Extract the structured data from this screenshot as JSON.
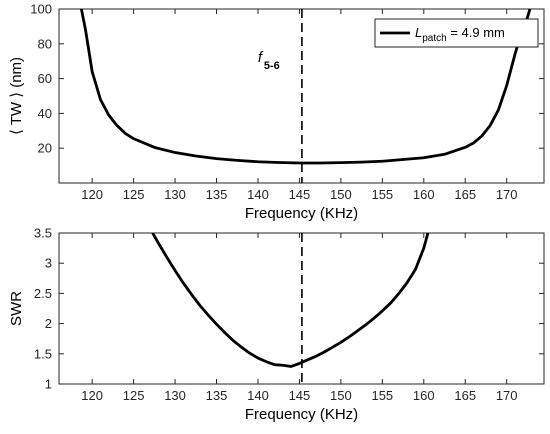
{
  "chart_data": [
    {
      "type": "line",
      "xlabel": "Frequency (KHz)",
      "ylabel": "⟨ TW ⟩ (nm)",
      "xlim": [
        116,
        174.5
      ],
      "ylim": [
        0,
        100
      ],
      "xticks": [
        120,
        125,
        130,
        135,
        140,
        145,
        150,
        155,
        160,
        165,
        170
      ],
      "yticks": [
        20,
        40,
        60,
        80,
        100
      ],
      "grid": false,
      "legend_position": "top-right",
      "legend": {
        "prefix": "L",
        "subscript": "patch",
        "suffix": " = 4.9 mm"
      },
      "vline": {
        "x": 145.3,
        "label_main": "f",
        "label_sub": "5-6"
      },
      "series": [
        {
          "name": "L patch = 4.9 mm",
          "x": [
            118.7,
            119.2,
            120,
            121,
            122,
            123,
            124,
            125,
            127.5,
            130,
            132.5,
            135,
            137.5,
            140,
            142.5,
            145,
            147.5,
            150,
            152.5,
            155,
            157.5,
            160,
            162.5,
            165,
            166,
            167,
            168,
            169,
            170,
            170.5,
            171,
            171.5,
            172,
            172.5,
            172.8
          ],
          "y": [
            100,
            88,
            64,
            48,
            39,
            33,
            28.5,
            25.5,
            20.5,
            17.5,
            15.5,
            14,
            13,
            12.2,
            11.8,
            11.5,
            11.5,
            11.7,
            12,
            12.5,
            13.5,
            14.5,
            16.5,
            20.5,
            23,
            27,
            33,
            42,
            56,
            65,
            74,
            82,
            89,
            95,
            100
          ]
        }
      ]
    },
    {
      "type": "line",
      "xlabel": "Frequency (KHz)",
      "ylabel": "SWR",
      "xlim": [
        116,
        174.5
      ],
      "ylim": [
        1,
        3.5
      ],
      "xticks": [
        120,
        125,
        130,
        135,
        140,
        145,
        150,
        155,
        160,
        165,
        170
      ],
      "yticks": [
        1,
        1.5,
        2,
        2.5,
        3,
        3.5
      ],
      "yticklabels": [
        "1",
        "1.5",
        "2",
        "2.5",
        "3",
        "3.5"
      ],
      "grid": false,
      "vline": {
        "x": 145.3
      },
      "series": [
        {
          "x": [
            127.3,
            128,
            129,
            130,
            131,
            132,
            133,
            134,
            135,
            136,
            137,
            138,
            139,
            140,
            141,
            142,
            143,
            144,
            145,
            146,
            147,
            148,
            149,
            150,
            151,
            152,
            153,
            154,
            155,
            156,
            157,
            158,
            159,
            160,
            160.5
          ],
          "y": [
            3.5,
            3.33,
            3.1,
            2.88,
            2.67,
            2.48,
            2.3,
            2.14,
            1.99,
            1.85,
            1.72,
            1.61,
            1.51,
            1.43,
            1.37,
            1.32,
            1.31,
            1.29,
            1.34,
            1.4,
            1.46,
            1.53,
            1.61,
            1.69,
            1.78,
            1.88,
            1.98,
            2.09,
            2.21,
            2.34,
            2.5,
            2.68,
            2.9,
            3.25,
            3.5
          ]
        }
      ]
    }
  ]
}
